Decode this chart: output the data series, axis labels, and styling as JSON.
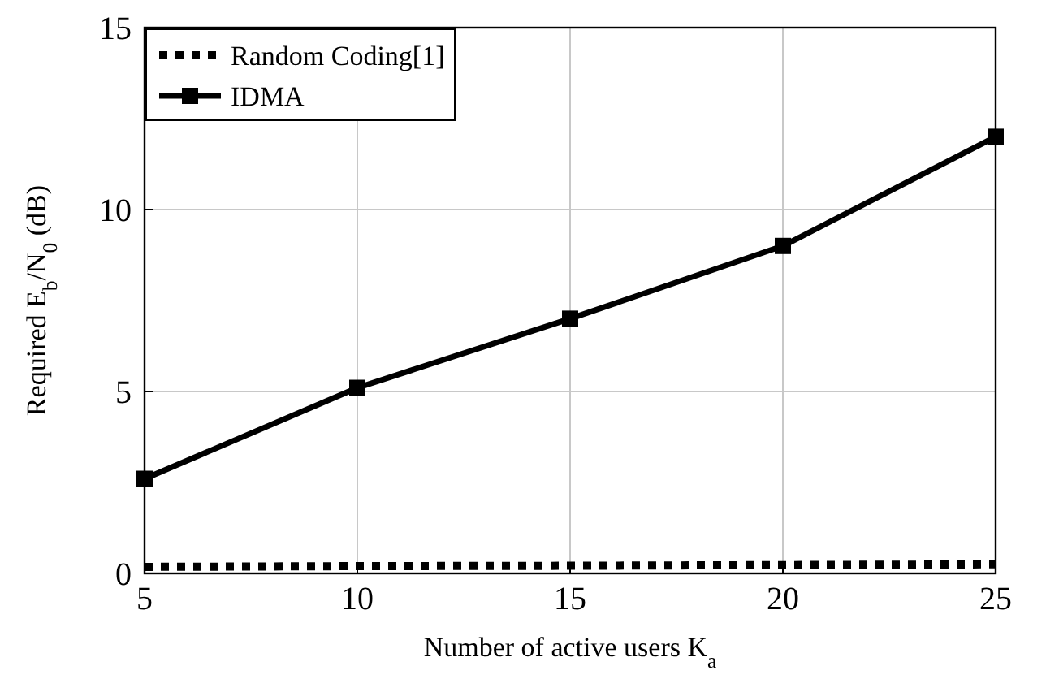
{
  "chart_data": {
    "type": "line",
    "xlabel": "Number of active users K$_{a}$",
    "ylabel": "Required E$_{b}$/N$_{0}$ (dB)",
    "x": [
      5,
      10,
      15,
      20,
      25
    ],
    "xlim": [
      5,
      25
    ],
    "xticks": [
      5,
      10,
      15,
      20,
      25
    ],
    "ylim": [
      0,
      15
    ],
    "yticks": [
      0,
      5,
      10,
      15
    ],
    "grid": true,
    "legend": "top left",
    "series": [
      {
        "name": "Random Coding[1]",
        "color": "#000000",
        "values": [
          0.18,
          0.2,
          0.21,
          0.23,
          0.25
        ],
        "line_style": "dotted",
        "marker": "none"
      },
      {
        "name": "IDMA",
        "color": "#000000",
        "values": [
          2.6,
          5.1,
          7.0,
          9.0,
          12.0
        ],
        "line_style": "solid",
        "marker": "square"
      }
    ]
  }
}
